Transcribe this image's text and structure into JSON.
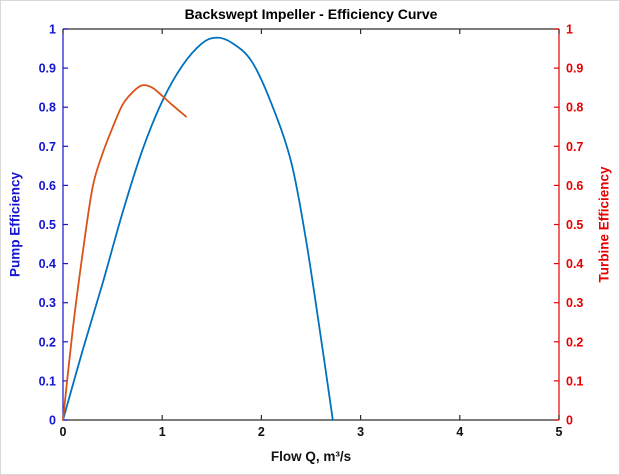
{
  "chart_data": {
    "type": "line",
    "title": "Backswept Impeller - Efficiency Curve",
    "xlabel": "Flow Q, m³/s",
    "grid": false,
    "legend": null,
    "x_axis": {
      "range": [
        0,
        5
      ],
      "ticks": [
        0,
        1,
        2,
        3,
        4,
        5
      ],
      "tick_labels": [
        "0",
        "1",
        "2",
        "3",
        "4",
        "5"
      ],
      "color": "#2e2e2e",
      "text_color": "#111111"
    },
    "left_axis": {
      "label": "Pump Efficiency",
      "range": [
        0,
        1
      ],
      "ticks": [
        0,
        0.1,
        0.2,
        0.3,
        0.4,
        0.5,
        0.6,
        0.7,
        0.8,
        0.9,
        1
      ],
      "tick_labels": [
        "0",
        "0.1",
        "0.2",
        "0.3",
        "0.4",
        "0.5",
        "0.6",
        "0.7",
        "0.8",
        "0.9",
        "1"
      ],
      "color": "#1414d2"
    },
    "right_axis": {
      "label": "Turbine Efficiency",
      "range": [
        0,
        1
      ],
      "ticks": [
        0,
        0.1,
        0.2,
        0.3,
        0.4,
        0.5,
        0.6,
        0.7,
        0.8,
        0.9,
        1
      ],
      "tick_labels": [
        "0",
        "0.1",
        "0.2",
        "0.3",
        "0.4",
        "0.5",
        "0.6",
        "0.7",
        "0.8",
        "0.9",
        "1"
      ],
      "color": "#e60000"
    },
    "series": [
      {
        "name": "pump-efficiency",
        "axis": "left",
        "color": "#0072BD",
        "peak": {
          "q": 1.55,
          "eff": 0.978
        },
        "points": [
          [
            0.0,
            0.0
          ],
          [
            0.2,
            0.18
          ],
          [
            0.4,
            0.35
          ],
          [
            0.6,
            0.53
          ],
          [
            0.8,
            0.69
          ],
          [
            1.0,
            0.815
          ],
          [
            1.2,
            0.905
          ],
          [
            1.4,
            0.963
          ],
          [
            1.55,
            0.978
          ],
          [
            1.7,
            0.965
          ],
          [
            1.9,
            0.918
          ],
          [
            2.1,
            0.81
          ],
          [
            2.3,
            0.66
          ],
          [
            2.45,
            0.46
          ],
          [
            2.6,
            0.21
          ],
          [
            2.72,
            0.0
          ]
        ]
      },
      {
        "name": "turbine-efficiency",
        "axis": "right",
        "color": "#D95319",
        "peak": {
          "q": 0.8,
          "eff": 0.856
        },
        "points": [
          [
            0.0,
            0.0
          ],
          [
            0.1,
            0.235
          ],
          [
            0.2,
            0.43
          ],
          [
            0.3,
            0.597
          ],
          [
            0.4,
            0.682
          ],
          [
            0.5,
            0.748
          ],
          [
            0.6,
            0.806
          ],
          [
            0.7,
            0.838
          ],
          [
            0.8,
            0.856
          ],
          [
            0.9,
            0.85
          ],
          [
            1.0,
            0.829
          ],
          [
            1.1,
            0.806
          ],
          [
            1.24,
            0.776
          ]
        ]
      }
    ]
  }
}
